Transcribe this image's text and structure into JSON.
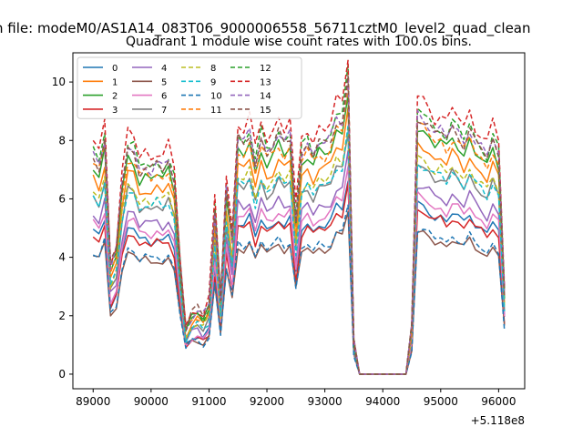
{
  "chart_data": {
    "type": "line",
    "suptitle": "n file: modeM0/AS1A14_083T06_9000006558_56711cztM0_level2_quad_clean",
    "title": "Quadrant 1 module wise count rates with 100.0s bins.",
    "xlabel": "",
    "ylabel": "",
    "offset_text": "+5.118e8",
    "x_offset": 511800000,
    "xlim": [
      88650,
      96450
    ],
    "ylim": [
      -0.5,
      11.0
    ],
    "x_ticks": [
      89000,
      90000,
      91000,
      92000,
      93000,
      94000,
      95000,
      96000
    ],
    "x_tick_labels": [
      "89000",
      "90000",
      "91000",
      "92000",
      "93000",
      "94000",
      "95000",
      "96000"
    ],
    "y_ticks": [
      0,
      2,
      4,
      6,
      8,
      10
    ],
    "y_tick_labels": [
      "0",
      "2",
      "4",
      "6",
      "8",
      "10"
    ],
    "grid": false,
    "legend_position": "top-left",
    "legend_columns": 4,
    "x": [
      89000,
      89100,
      89200,
      89300,
      89400,
      89500,
      89600,
      89700,
      89800,
      89900,
      90000,
      90100,
      90200,
      90300,
      90400,
      90500,
      90600,
      90700,
      90800,
      90900,
      91000,
      91100,
      91200,
      91300,
      91400,
      91500,
      91600,
      91700,
      91800,
      91900,
      92000,
      92100,
      92200,
      92300,
      92400,
      92500,
      92600,
      92700,
      92800,
      92900,
      93000,
      93100,
      93200,
      93300,
      93400,
      93500,
      93600,
      93700,
      93800,
      93900,
      94000,
      94100,
      94200,
      94300,
      94400,
      94500,
      94600,
      94700,
      94800,
      94900,
      95000,
      95100,
      95200,
      95300,
      95400,
      95500,
      95600,
      95700,
      95800,
      95900,
      96000,
      96100
    ],
    "base_profile": [
      7.0,
      6.7,
      7.6,
      3.4,
      3.9,
      6.0,
      7.2,
      7.1,
      6.5,
      6.7,
      6.5,
      6.7,
      6.5,
      6.8,
      6.1,
      3.5,
      1.4,
      1.8,
      1.9,
      1.7,
      2.1,
      5.2,
      2.3,
      6.0,
      4.3,
      7.5,
      7.3,
      7.7,
      6.7,
      7.6,
      7.1,
      7.3,
      7.7,
      7.3,
      7.6,
      4.9,
      7.1,
      7.4,
      7.0,
      7.4,
      7.3,
      7.5,
      8.2,
      8.1,
      9.6,
      1.0,
      0.0,
      0.0,
      0.0,
      0.0,
      0.0,
      0.0,
      0.0,
      0.0,
      0.0,
      1.4,
      8.3,
      8.2,
      8.0,
      7.7,
      7.8,
      7.5,
      7.9,
      7.7,
      7.4,
      7.9,
      7.4,
      7.2,
      6.9,
      7.5,
      7.0,
      2.6
    ],
    "series": [
      {
        "name": "0",
        "color": "#1f77b4",
        "dashed": false,
        "scale": 0.69,
        "offset": 0.05
      },
      {
        "name": "1",
        "color": "#ff7f0e",
        "dashed": false,
        "scale": 0.94,
        "offset": 0.1
      },
      {
        "name": "2",
        "color": "#2ca02c",
        "dashed": false,
        "scale": 1.0,
        "offset": 0.15
      },
      {
        "name": "3",
        "color": "#d62728",
        "dashed": false,
        "scale": 0.69,
        "offset": -0.1
      },
      {
        "name": "4",
        "color": "#9467bd",
        "dashed": false,
        "scale": 0.78,
        "offset": 0.0
      },
      {
        "name": "5",
        "color": "#8c564b",
        "dashed": false,
        "scale": 0.57,
        "offset": 0.1
      },
      {
        "name": "6",
        "color": "#e377c2",
        "dashed": false,
        "scale": 0.74,
        "offset": -0.05
      },
      {
        "name": "7",
        "color": "#7f7f7f",
        "dashed": false,
        "scale": 0.86,
        "offset": 0.05
      },
      {
        "name": "8",
        "color": "#bcbd22",
        "dashed": true,
        "scale": 0.9,
        "offset": 0.0
      },
      {
        "name": "9",
        "color": "#17becf",
        "dashed": true,
        "scale": 0.88,
        "offset": -0.05
      },
      {
        "name": "10",
        "color": "#1f77b4",
        "dashed": true,
        "scale": 0.6,
        "offset": 0.0
      },
      {
        "name": "11",
        "color": "#ff7f0e",
        "dashed": true,
        "scale": 1.02,
        "offset": 0.05
      },
      {
        "name": "12",
        "color": "#2ca02c",
        "dashed": true,
        "scale": 1.08,
        "offset": 0.05
      },
      {
        "name": "13",
        "color": "#d62728",
        "dashed": true,
        "scale": 1.13,
        "offset": 0.1
      },
      {
        "name": "14",
        "color": "#9467bd",
        "dashed": true,
        "scale": 1.06,
        "offset": 0.1
      },
      {
        "name": "15",
        "color": "#8c564b",
        "dashed": true,
        "scale": 1.04,
        "offset": 0.2
      }
    ]
  }
}
